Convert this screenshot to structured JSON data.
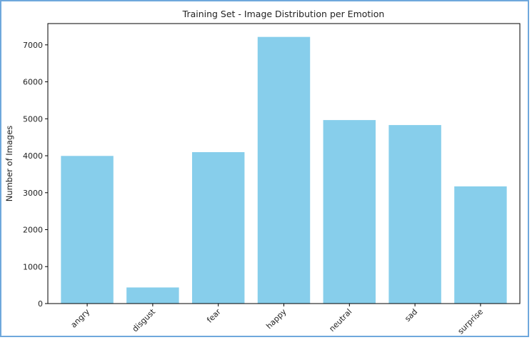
{
  "chart_data": {
    "type": "bar",
    "title": "Training Set - Image Distribution per Emotion",
    "xlabel": "",
    "ylabel": "Number of Images",
    "categories": [
      "angry",
      "disgust",
      "fear",
      "happy",
      "neutral",
      "sad",
      "surprise"
    ],
    "values": [
      3995,
      436,
      4097,
      7215,
      4965,
      4830,
      3171
    ],
    "ylim": [
      0,
      7576
    ],
    "yticks": [
      0,
      1000,
      2000,
      3000,
      4000,
      5000,
      6000,
      7000
    ],
    "bar_color": "#87ceeb",
    "grid": false,
    "legend": "none"
  }
}
